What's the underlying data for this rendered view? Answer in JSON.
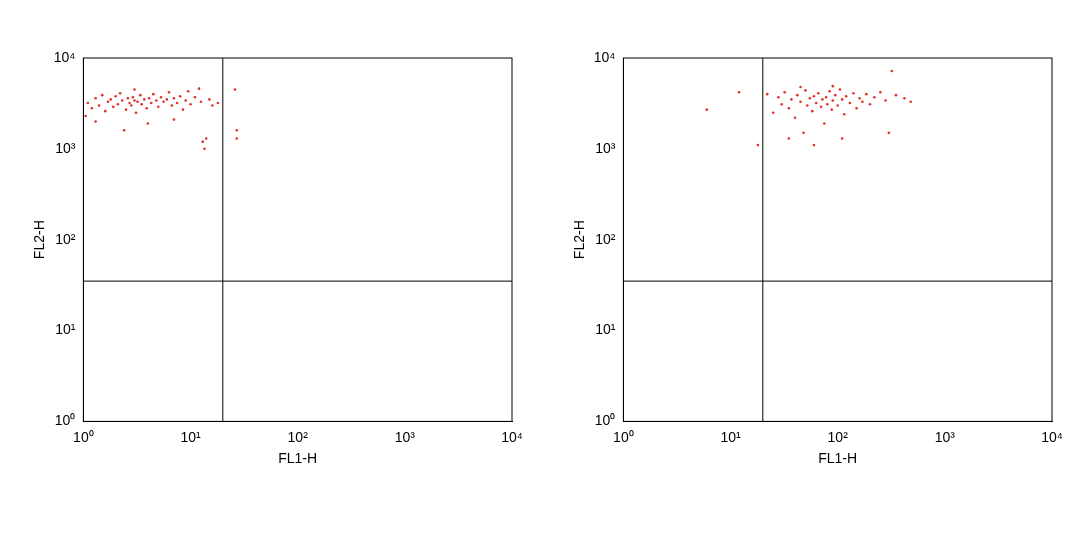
{
  "chart_data": [
    {
      "type": "scatter",
      "xlabel": "FL1-H",
      "ylabel": "FL2-H",
      "log": true,
      "color": "#e0302a",
      "xlim": [
        1,
        10000
      ],
      "ylim": [
        1,
        10000
      ],
      "xticks": [
        {
          "value": 1,
          "label": "10⁰"
        },
        {
          "value": 10,
          "label": "10¹"
        },
        {
          "value": 100,
          "label": "10²"
        },
        {
          "value": 1000,
          "label": "10³"
        },
        {
          "value": 10000,
          "label": "10⁴"
        }
      ],
      "yticks": [
        {
          "value": 1,
          "label": "10⁰"
        },
        {
          "value": 10,
          "label": "10¹"
        },
        {
          "value": 100,
          "label": "10²"
        },
        {
          "value": 1000,
          "label": "10³"
        },
        {
          "value": 10000,
          "label": "10⁴"
        }
      ],
      "gates": {
        "x": 20,
        "y": 35
      },
      "x": [
        1.1,
        1.2,
        1.3,
        1.4,
        1.5,
        1.6,
        1.7,
        1.8,
        1.9,
        2.0,
        2.1,
        2.2,
        2.3,
        2.5,
        2.6,
        2.7,
        2.8,
        2.9,
        3.0,
        3.1,
        3.2,
        3.4,
        3.5,
        3.7,
        3.9,
        4.1,
        4.3,
        4.5,
        4.8,
        5.0,
        5.3,
        5.6,
        6.0,
        6.3,
        6.7,
        7.0,
        7.5,
        8.0,
        8.5,
        9.0,
        9.5,
        10,
        11,
        12,
        12.5,
        13,
        13.5,
        14,
        15,
        16,
        18,
        26,
        27,
        27,
        1.05,
        1.3,
        2.4,
        4,
        7,
        3
      ],
      "values": [
        3200,
        2800,
        3600,
        3000,
        3900,
        2600,
        3300,
        3500,
        2900,
        3800,
        3100,
        4100,
        3400,
        2700,
        3600,
        3200,
        3000,
        3700,
        3400,
        2500,
        3300,
        3900,
        3100,
        3500,
        2800,
        3600,
        3200,
        4000,
        3400,
        2900,
        3700,
        3300,
        3500,
        4200,
        3000,
        3600,
        3200,
        3800,
        2700,
        3400,
        4300,
        3100,
        3700,
        4600,
        3300,
        1200,
        1000,
        1300,
        3500,
        3000,
        3200,
        4500,
        1600,
        1300,
        2300,
        2000,
        1600,
        1900,
        2100,
        4500
      ]
    },
    {
      "type": "scatter",
      "xlabel": "FL1-H",
      "ylabel": "FL2-H",
      "log": true,
      "color": "#e0302a",
      "xlim": [
        1,
        10000
      ],
      "ylim": [
        1,
        10000
      ],
      "xticks": [
        {
          "value": 1,
          "label": "10⁰"
        },
        {
          "value": 10,
          "label": "10¹"
        },
        {
          "value": 100,
          "label": "10²"
        },
        {
          "value": 1000,
          "label": "10³"
        },
        {
          "value": 10000,
          "label": "10⁴"
        }
      ],
      "yticks": [
        {
          "value": 1,
          "label": "10⁰"
        },
        {
          "value": 10,
          "label": "10¹"
        },
        {
          "value": 100,
          "label": "10²"
        },
        {
          "value": 1000,
          "label": "10³"
        },
        {
          "value": 10000,
          "label": "10⁴"
        }
      ],
      "gates": {
        "x": 20,
        "y": 35
      },
      "x": [
        18,
        22,
        25,
        28,
        30,
        32,
        35,
        37,
        40,
        42,
        45,
        48,
        50,
        52,
        55,
        58,
        60,
        63,
        66,
        70,
        72,
        75,
        78,
        80,
        84,
        88,
        90,
        95,
        100,
        105,
        110,
        115,
        120,
        130,
        140,
        150,
        160,
        170,
        185,
        200,
        220,
        250,
        280,
        320,
        350,
        420,
        480,
        6,
        12,
        35,
        60,
        110,
        300,
        45,
        90
      ],
      "values": [
        1100,
        4000,
        2500,
        3700,
        3100,
        4200,
        2800,
        3500,
        2200,
        3900,
        3300,
        1500,
        4400,
        3000,
        3600,
        2600,
        3800,
        3200,
        4100,
        2900,
        3500,
        1900,
        3700,
        3100,
        4300,
        2700,
        3400,
        3900,
        3000,
        4500,
        3500,
        2400,
        3800,
        3200,
        4100,
        2800,
        3600,
        3300,
        4000,
        3100,
        3700,
        4200,
        3400,
        7200,
        3900,
        3600,
        3300,
        2700,
        4200,
        1300,
        1100,
        1300,
        1500,
        4800,
        4900
      ]
    }
  ]
}
